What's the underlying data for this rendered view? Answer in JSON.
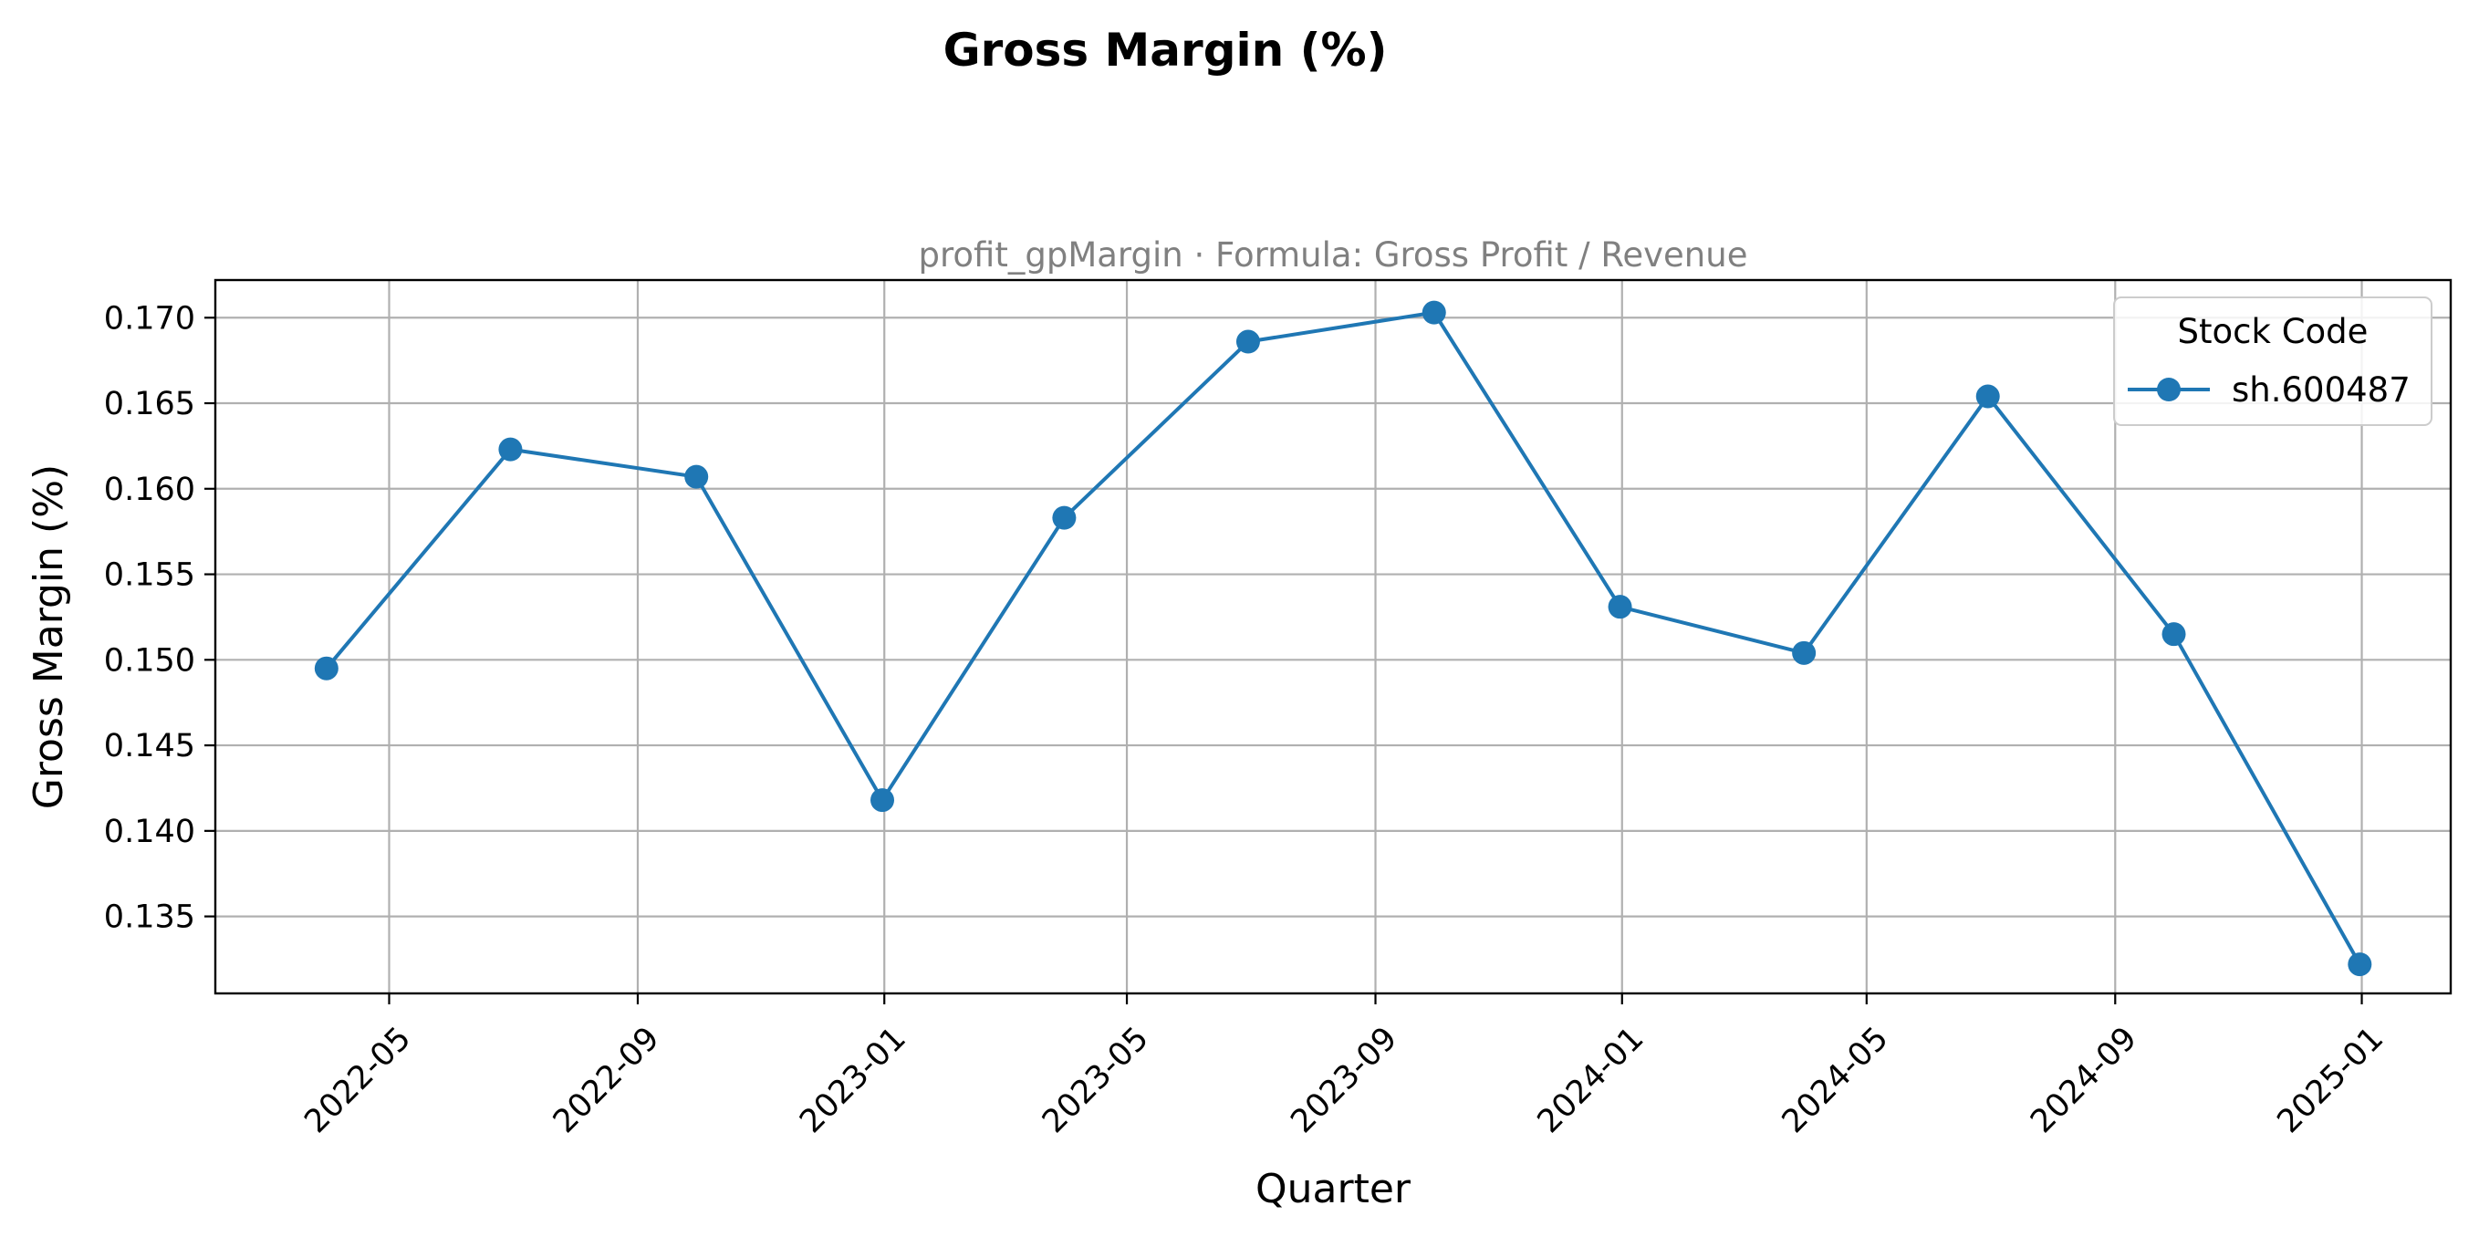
{
  "chart_data": {
    "type": "line",
    "title": "Gross Margin (%)",
    "subtitle": "profit_gpMargin · Formula: Gross Profit / Revenue",
    "xlabel": "Quarter",
    "ylabel": "Gross Margin (%)",
    "x_type": "date",
    "xlim": [
      "2022-02-04",
      "2025-02-14"
    ],
    "ylim": [
      0.1305,
      0.1722
    ],
    "x_ticks": [
      "2022-05",
      "2022-09",
      "2023-01",
      "2023-05",
      "2023-09",
      "2024-01",
      "2024-05",
      "2024-09",
      "2025-01"
    ],
    "y_ticks": [
      0.135,
      0.14,
      0.145,
      0.15,
      0.155,
      0.16,
      0.165,
      0.17
    ],
    "grid": true,
    "legend": {
      "title": "Stock Code",
      "position": "top-right"
    },
    "series": [
      {
        "name": "sh.600487",
        "color": "#1f77b4",
        "marker": "circle",
        "x": [
          "2022-03-31",
          "2022-06-30",
          "2022-09-30",
          "2022-12-31",
          "2023-03-31",
          "2023-06-30",
          "2023-09-30",
          "2023-12-31",
          "2024-03-31",
          "2024-06-30",
          "2024-09-30",
          "2024-12-31"
        ],
        "values": [
          0.1495,
          0.1623,
          0.1607,
          0.1418,
          0.1583,
          0.1686,
          0.1703,
          0.1531,
          0.1504,
          0.1654,
          0.1515,
          0.1322
        ]
      }
    ]
  }
}
